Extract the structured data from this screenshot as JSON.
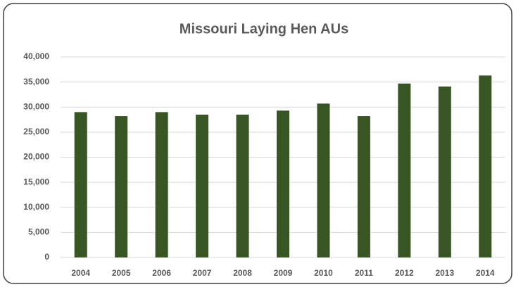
{
  "chart_data": {
    "type": "bar",
    "title": "Missouri Laying Hen AUs",
    "categories": [
      "2004",
      "2005",
      "2006",
      "2007",
      "2008",
      "2009",
      "2010",
      "2011",
      "2012",
      "2013",
      "2014"
    ],
    "values": [
      29000,
      28200,
      29000,
      28500,
      28500,
      29300,
      30700,
      28200,
      34700,
      34100,
      36300
    ],
    "color": "#375623",
    "ylim": [
      0,
      40000
    ],
    "yticks": [
      0,
      {
        "value": 5000,
        "label": "5,000"
      },
      {
        "value": 10000,
        "label": "10,000"
      },
      {
        "value": 15000,
        "label": "15,000"
      },
      {
        "value": 20000,
        "label": "20,000"
      },
      {
        "value": 25000,
        "label": "25,000"
      },
      {
        "value": 30000,
        "label": "30,000"
      },
      {
        "value": 35000,
        "label": "35,000"
      },
      {
        "value": 40000,
        "label": "40,000"
      }
    ],
    "grid": true
  }
}
